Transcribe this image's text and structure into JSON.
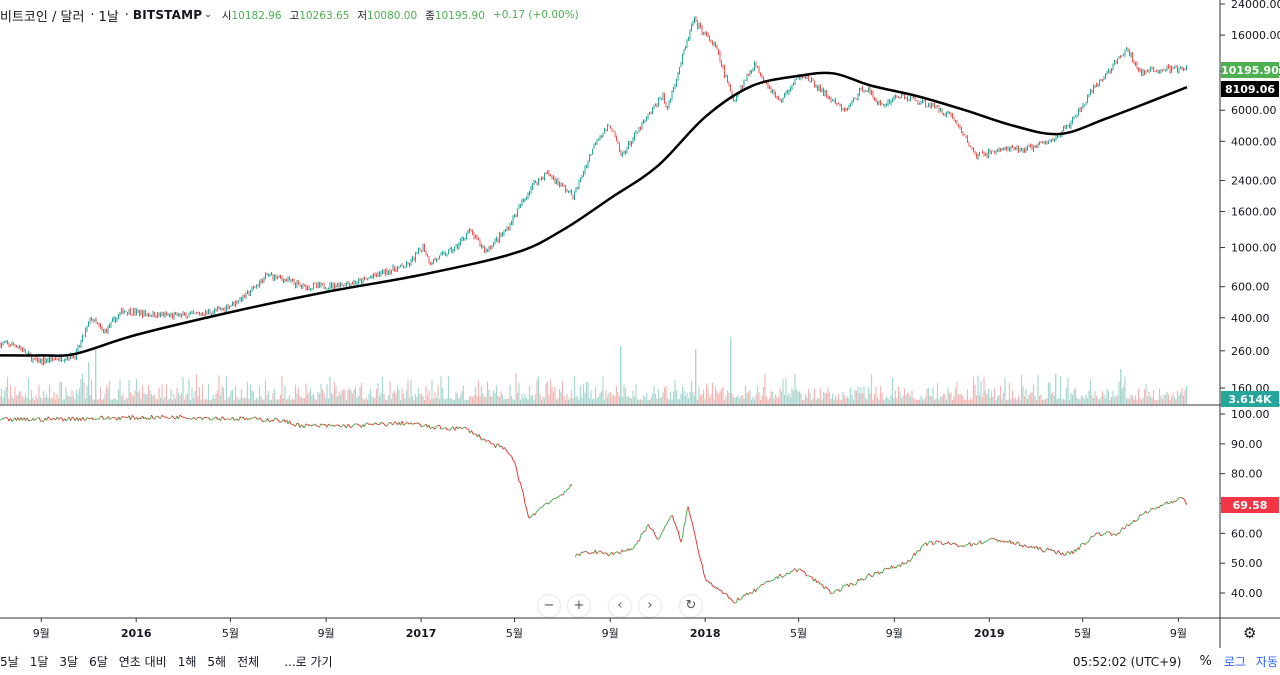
{
  "header": {
    "symbol": "비트코인 / 달러",
    "interval": "1날",
    "exchange": "BITSTAMP",
    "open_label": "시",
    "open_value": "10182.96",
    "high_label": "고",
    "high_value": "10263.65",
    "low_label": "저",
    "low_value": "10080.00",
    "close_label": "종",
    "close_value": "10195.90",
    "change": "+0.17 (+0.00%)",
    "chevron_icon": "chevron-down-icon"
  },
  "colors": {
    "up": "#26a69a",
    "down": "#ef5350",
    "ma": "#000000",
    "price_badge": "#4caf50",
    "ma_badge": "#000000",
    "volume_badge": "#26a69a",
    "indicator_badge": "#f23645",
    "indicator_line_up": "#4caf50",
    "indicator_line_down": "#e53935"
  },
  "chart_data": [
    {
      "type": "line",
      "scale": "log",
      "ylim": [
        160,
        24000
      ],
      "yticks": [
        "24000.00",
        "16000.00",
        "10000.00",
        "6000.00",
        "4000.00",
        "2400.00",
        "1600.00",
        "1000.00",
        "600.00",
        "400.00",
        "260.00",
        "160.00"
      ],
      "ytick_values": [
        24000,
        16000,
        10000,
        6000,
        4000,
        2400,
        1600,
        1000,
        600,
        400,
        260,
        160
      ],
      "xticks": [
        "9월",
        "2016",
        "5월",
        "9월",
        "2017",
        "5월",
        "9월",
        "2018",
        "5월",
        "9월",
        "2019",
        "5월",
        "9월"
      ],
      "xtick_dates": [
        "2015-09-01",
        "2016-01-01",
        "2016-05-01",
        "2016-09-01",
        "2017-01-01",
        "2017-05-01",
        "2017-09-01",
        "2018-01-01",
        "2018-05-01",
        "2018-09-01",
        "2019-01-01",
        "2019-05-01",
        "2019-09-01"
      ],
      "x_range": [
        "2015-07-10",
        "2019-09-12"
      ],
      "price_series": {
        "x": [
          "2015-07-10",
          "2015-08-01",
          "2015-08-25",
          "2015-09-20",
          "2015-10-15",
          "2015-11-04",
          "2015-11-20",
          "2015-12-15",
          "2016-01-15",
          "2016-02-15",
          "2016-03-15",
          "2016-04-20",
          "2016-05-20",
          "2016-06-18",
          "2016-07-10",
          "2016-08-02",
          "2016-09-01",
          "2016-10-15",
          "2016-11-15",
          "2016-12-15",
          "2017-01-04",
          "2017-01-12",
          "2017-02-15",
          "2017-03-03",
          "2017-03-25",
          "2017-04-20",
          "2017-05-25",
          "2017-06-12",
          "2017-07-16",
          "2017-08-15",
          "2017-09-02",
          "2017-09-15",
          "2017-10-10",
          "2017-11-08",
          "2017-11-12",
          "2017-12-17",
          "2018-01-15",
          "2018-02-06",
          "2018-03-05",
          "2018-04-06",
          "2018-05-05",
          "2018-06-29",
          "2018-07-25",
          "2018-08-15",
          "2018-09-05",
          "2018-10-15",
          "2018-11-14",
          "2018-12-15",
          "2019-01-15",
          "2019-02-15",
          "2019-03-20",
          "2019-04-15",
          "2019-05-15",
          "2019-06-26",
          "2019-07-15",
          "2019-08-15",
          "2019-09-12"
        ],
        "close": [
          285,
          280,
          225,
          235,
          245,
          400,
          330,
          440,
          420,
          410,
          415,
          445,
          530,
          700,
          660,
          600,
          605,
          640,
          730,
          790,
          1020,
          820,
          1000,
          1250,
          960,
          1250,
          2300,
          2650,
          1950,
          4200,
          4900,
          3300,
          4800,
          7400,
          5900,
          19500,
          13500,
          6800,
          11000,
          6700,
          9700,
          5900,
          8200,
          6300,
          7300,
          6500,
          5600,
          3300,
          3600,
          3600,
          4000,
          5000,
          7900,
          13200,
          9800,
          10300,
          10195.9
        ]
      },
      "ma_series": {
        "name": "",
        "x": [
          "2015-07-10",
          "2015-09-01",
          "2015-10-15",
          "2016-01-01",
          "2016-05-01",
          "2016-09-01",
          "2017-01-01",
          "2017-05-01",
          "2017-07-01",
          "2017-09-01",
          "2017-11-01",
          "2018-01-01",
          "2018-03-01",
          "2018-05-01",
          "2018-06-15",
          "2018-08-01",
          "2018-10-01",
          "2018-12-01",
          "2019-02-01",
          "2019-04-01",
          "2019-06-01",
          "2019-09-12"
        ],
        "values": [
          245,
          245,
          250,
          320,
          430,
          560,
          700,
          930,
          1250,
          1900,
          2900,
          5500,
          8200,
          9400,
          9700,
          8300,
          7200,
          6000,
          4900,
          4400,
          5400,
          8109.06
        ]
      },
      "last_price": "10195.90",
      "last_ma": "8109.06"
    },
    {
      "type": "bar",
      "name": "volume",
      "last_label": "3.614K"
    },
    {
      "type": "line",
      "name": "indicator",
      "ylim": [
        35,
        101
      ],
      "yticks": [
        "100.00",
        "90.00",
        "80.00",
        "70.00",
        "60.00",
        "50.00",
        "40.00"
      ],
      "ytick_values": [
        100,
        90,
        80,
        70,
        60,
        50,
        40
      ],
      "segments": [
        {
          "x": [
            "2015-07-10",
            "2015-11-01",
            "2016-03-01",
            "2016-07-01",
            "2016-08-02",
            "2016-10-01",
            "2016-12-15",
            "2017-01-15",
            "2017-03-01",
            "2017-04-01",
            "2017-04-20",
            "2017-05-01",
            "2017-05-20",
            "2017-06-10",
            "2017-06-25",
            "2017-07-14"
          ],
          "y": [
            98,
            98.5,
            99,
            98,
            96,
            96,
            97,
            95.5,
            95,
            90,
            88,
            84,
            65,
            70,
            72,
            76
          ]
        },
        {
          "x": [
            "2017-07-18",
            "2017-08-01",
            "2017-09-01",
            "2017-10-01",
            "2017-10-20",
            "2017-11-01",
            "2017-11-20",
            "2017-12-01",
            "2017-12-10",
            "2018-01-01",
            "2018-02-06",
            "2018-03-01",
            "2018-04-01",
            "2018-05-01",
            "2018-06-15",
            "2018-08-01",
            "2018-09-15",
            "2018-10-15",
            "2018-12-01",
            "2019-01-10",
            "2019-03-01",
            "2019-04-15",
            "2019-05-20",
            "2019-06-15",
            "2019-07-15",
            "2019-08-15",
            "2019-09-05",
            "2019-09-12"
          ],
          "y": [
            52,
            54,
            53,
            55,
            63,
            58,
            66,
            57,
            69,
            45,
            37,
            40,
            45,
            48,
            40,
            46,
            50,
            57,
            56,
            58,
            55,
            53,
            60,
            60,
            66,
            70,
            72,
            69.58
          ]
        }
      ],
      "last_label": "69.58"
    }
  ],
  "navigation": {
    "zoom_out_icon": "minus-icon",
    "zoom_in_icon": "plus-icon",
    "scroll_left_icon": "chevron-left-icon",
    "scroll_right_icon": "chevron-right-icon",
    "reset_icon": "reset-icon",
    "settings_icon": "gear-icon"
  },
  "bottom_bar": {
    "timeframes": [
      "5날",
      "1달",
      "3달",
      "6달",
      "연초 대비",
      "1해",
      "5해",
      "전체"
    ],
    "goto": "...로 가기",
    "clock": "05:52:02 (UTC+9)",
    "percent": "%",
    "log": "로그",
    "auto": "자동"
  }
}
